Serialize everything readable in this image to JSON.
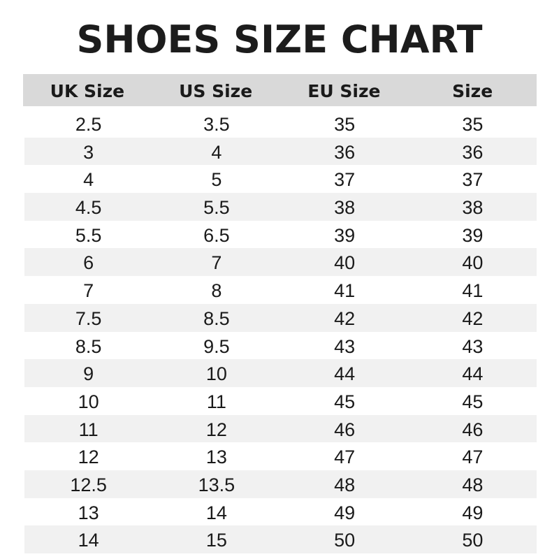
{
  "title": "SHOES SIZE CHART",
  "headers": [
    "UK Size",
    "US Size",
    "EU Size",
    "Size"
  ],
  "rows": [
    [
      "2.5",
      "3.5",
      "35",
      "35"
    ],
    [
      "3",
      "4",
      "36",
      "36"
    ],
    [
      "4",
      "5",
      "37",
      "37"
    ],
    [
      "4.5",
      "5.5",
      "38",
      "38"
    ],
    [
      "5.5",
      "6.5",
      "39",
      "39"
    ],
    [
      "6",
      "7",
      "40",
      "40"
    ],
    [
      "7",
      "8",
      "41",
      "41"
    ],
    [
      "7.5",
      "8.5",
      "42",
      "42"
    ],
    [
      "8.5",
      "9.5",
      "43",
      "43"
    ],
    [
      "9",
      "10",
      "44",
      "44"
    ],
    [
      "10",
      "11",
      "45",
      "45"
    ],
    [
      "11",
      "12",
      "46",
      "46"
    ],
    [
      "12",
      "13",
      "47",
      "47"
    ],
    [
      "12.5",
      "13.5",
      "48",
      "48"
    ],
    [
      "13",
      "14",
      "49",
      "49"
    ],
    [
      "14",
      "15",
      "50",
      "50"
    ]
  ],
  "colors": {
    "header_bg": "#d9d9d9",
    "stripe_bg": "#f1f1f1",
    "text": "#1a1a1a"
  }
}
